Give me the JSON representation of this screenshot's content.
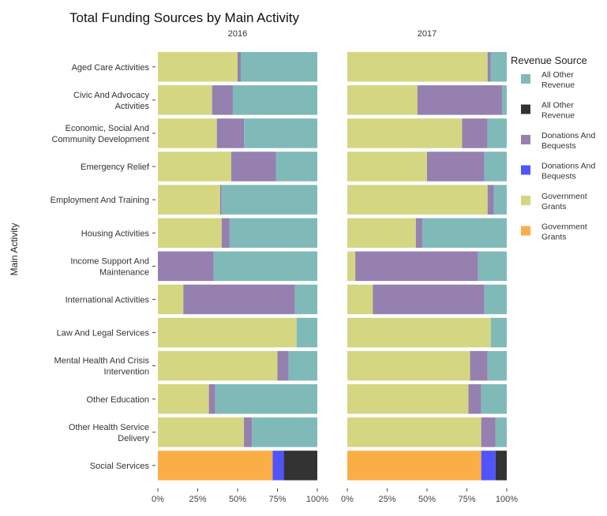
{
  "chart_data": {
    "type": "bar",
    "title": "Total Funding Sources by Main Activity",
    "ylabel": "Main Activity",
    "xlim": [
      0,
      1
    ],
    "x_ticks": [
      "0%",
      "25%",
      "50%",
      "75%",
      "100%"
    ],
    "panels": [
      "2016",
      "2017"
    ],
    "categories": [
      "Aged Care Activities",
      "Civic And Advocacy Activities",
      "Economic, Social And Community Development",
      "Emergency Relief",
      "Employment And Training",
      "Housing Activities",
      "Income Support And Maintenance",
      "International Activities",
      "Law And Legal Services",
      "Mental Health And Crisis Intervention",
      "Other Education",
      "Other Health Service Delivery",
      "Social Services"
    ],
    "category_lines": [
      [
        "Aged Care Activities"
      ],
      [
        "Civic And Advocacy",
        "Activities"
      ],
      [
        "Economic, Social And",
        "Community Development"
      ],
      [
        "Emergency Relief"
      ],
      [
        "Employment And Training"
      ],
      [
        "Housing Activities"
      ],
      [
        "Income Support And",
        "Maintenance"
      ],
      [
        "International Activities"
      ],
      [
        "Law And Legal Services"
      ],
      [
        "Mental Health And Crisis",
        "Intervention"
      ],
      [
        "Other Education"
      ],
      [
        "Other Health Service",
        "Delivery"
      ],
      [
        "Social Services"
      ]
    ],
    "series": [
      {
        "name": "Government Grants",
        "color": "#d4d682",
        "values": {
          "2016": [
            0.5,
            0.34,
            0.37,
            0.46,
            0.39,
            0.4,
            0.0,
            0.16,
            0.87,
            0.75,
            0.32,
            0.54,
            0.72
          ],
          "2017": [
            0.88,
            0.44,
            0.72,
            0.5,
            0.88,
            0.43,
            0.05,
            0.16,
            0.9,
            0.77,
            0.76,
            0.84,
            0.84
          ]
        }
      },
      {
        "name": "Donations And Bequests",
        "color": "#9580b0",
        "values": {
          "2016": [
            0.02,
            0.13,
            0.17,
            0.28,
            0.01,
            0.05,
            0.35,
            0.7,
            0.0,
            0.07,
            0.04,
            0.05,
            0.07
          ],
          "2017": [
            0.02,
            0.53,
            0.16,
            0.36,
            0.04,
            0.04,
            0.77,
            0.7,
            0.0,
            0.11,
            0.08,
            0.09,
            0.09
          ]
        }
      },
      {
        "name": "All Other Revenue",
        "color": "#7fbab8",
        "values": {
          "2016": [
            0.48,
            0.53,
            0.46,
            0.26,
            0.6,
            0.55,
            0.65,
            0.14,
            0.13,
            0.18,
            0.64,
            0.41,
            0.21
          ],
          "2017": [
            0.1,
            0.03,
            0.12,
            0.14,
            0.08,
            0.53,
            0.18,
            0.14,
            0.1,
            0.12,
            0.16,
            0.07,
            0.07
          ]
        }
      }
    ],
    "highlight_category": "Social Services",
    "highlight_colors": {
      "Government Grants": "#fbae47",
      "Donations And Bequests": "#4f55fb",
      "All Other Revenue": "#333333"
    },
    "legend": {
      "title": "Revenue Source",
      "position": "right",
      "items": [
        {
          "label": "All Other Revenue",
          "lines": [
            "All Other",
            "Revenue"
          ],
          "color": "#7fbab8"
        },
        {
          "label": "All Other Revenue",
          "lines": [
            "All Other",
            "Revenue"
          ],
          "color": "#333333"
        },
        {
          "label": "Donations And Bequests",
          "lines": [
            "Donations And",
            "Bequests"
          ],
          "color": "#9580b0"
        },
        {
          "label": "Donations And Bequests",
          "lines": [
            "Donations And",
            "Bequests"
          ],
          "color": "#4f55fb"
        },
        {
          "label": "Government Grants",
          "lines": [
            "Government",
            "Grants"
          ],
          "color": "#d4d682"
        },
        {
          "label": "Government Grants",
          "lines": [
            "Government",
            "Grants"
          ],
          "color": "#fbae47"
        }
      ]
    },
    "grid": false
  }
}
